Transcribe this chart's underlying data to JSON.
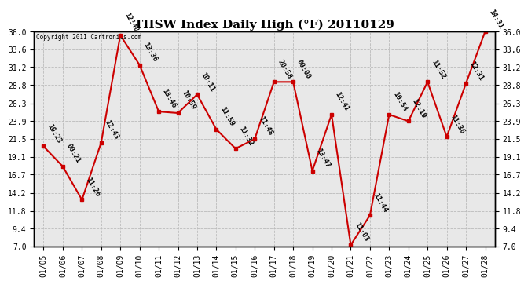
{
  "title": "THSW Index Daily High (°F) 20110129",
  "copyright": "Copyright 2011 Cartronics.com",
  "dates": [
    "01/05",
    "01/06",
    "01/07",
    "01/08",
    "01/09",
    "01/10",
    "01/11",
    "01/12",
    "01/13",
    "01/14",
    "01/15",
    "01/16",
    "01/17",
    "01/18",
    "01/19",
    "01/20",
    "01/21",
    "01/22",
    "01/23",
    "01/24",
    "01/25",
    "01/26",
    "01/27",
    "01/28"
  ],
  "values": [
    20.5,
    17.8,
    13.3,
    21.0,
    35.5,
    31.5,
    25.2,
    25.0,
    27.5,
    22.8,
    20.2,
    21.5,
    29.2,
    29.2,
    17.2,
    24.8,
    7.2,
    11.2,
    24.8,
    23.9,
    29.2,
    21.8,
    29.0,
    36.0
  ],
  "time_labels": [
    "10:23",
    "00:21",
    "11:26",
    "12:43",
    "12:48",
    "13:36",
    "13:46",
    "10:59",
    "10:11",
    "11:59",
    "11:32",
    "11:48",
    "20:58",
    "00:00",
    "13:47",
    "12:41",
    "11:03",
    "11:44",
    "10:54",
    "12:19",
    "11:52",
    "11:36",
    "12:31",
    "14:31"
  ],
  "yticks": [
    7.0,
    9.4,
    11.8,
    14.2,
    16.7,
    19.1,
    21.5,
    23.9,
    26.3,
    28.8,
    31.2,
    33.6,
    36.0
  ],
  "ylim": [
    7.0,
    36.0
  ],
  "line_color": "#cc0000",
  "marker_color": "#cc0000",
  "grid_color": "#bbbbbb",
  "bg_color": "#ffffff",
  "plot_bg_color": "#e8e8e8",
  "title_fontsize": 11,
  "tick_fontsize": 7,
  "annot_fontsize": 6.5
}
